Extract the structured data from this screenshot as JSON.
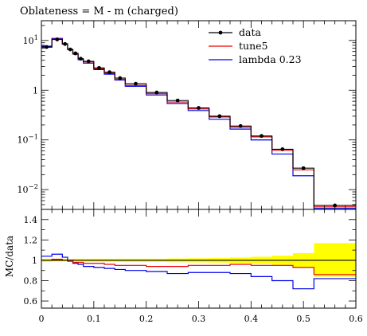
{
  "chart_data": [
    {
      "type": "line",
      "title": "Oblateness = M - m (charged)",
      "xlabel": "",
      "ylabel": "",
      "yscale": "log",
      "xlim": [
        0,
        0.6
      ],
      "ylim": [
        0.004,
        25
      ],
      "y_ticks": [
        {
          "value": 0.01,
          "base": "10",
          "exp": "−2"
        },
        {
          "value": 0.1,
          "base": "10",
          "exp": "−1"
        },
        {
          "value": 1,
          "base": "1",
          "exp": ""
        },
        {
          "value": 10,
          "base": "10",
          "exp": "1"
        }
      ],
      "legend": {
        "placement": "top-right"
      },
      "bin_edges": [
        0,
        0.02,
        0.04,
        0.05,
        0.06,
        0.07,
        0.08,
        0.1,
        0.12,
        0.14,
        0.16,
        0.2,
        0.24,
        0.28,
        0.32,
        0.36,
        0.4,
        0.44,
        0.48,
        0.52,
        0.6
      ],
      "series": [
        {
          "name": "data",
          "kind": "points",
          "color": "#000000",
          "x": [
            0.01,
            0.03,
            0.045,
            0.055,
            0.065,
            0.075,
            0.09,
            0.11,
            0.13,
            0.15,
            0.18,
            0.22,
            0.26,
            0.3,
            0.34,
            0.38,
            0.42,
            0.46,
            0.5,
            0.56
          ],
          "values": [
            7.4,
            10.5,
            8.5,
            6.6,
            5.5,
            4.3,
            3.8,
            2.8,
            2.3,
            1.75,
            1.35,
            0.9,
            0.62,
            0.44,
            0.3,
            0.19,
            0.12,
            0.065,
            0.027,
            0.0048
          ]
        },
        {
          "name": "tune5",
          "kind": "histogram",
          "color": "#ee0000",
          "values": [
            7.3,
            10.6,
            8.4,
            6.6,
            5.3,
            4.2,
            3.7,
            2.7,
            2.2,
            1.65,
            1.25,
            0.85,
            0.58,
            0.42,
            0.29,
            0.18,
            0.115,
            0.062,
            0.025,
            0.0045
          ]
        },
        {
          "name": "lambda 0.23",
          "kind": "histogram",
          "color": "#0000ee",
          "values": [
            7.7,
            11.0,
            8.6,
            6.6,
            5.3,
            4.1,
            3.5,
            2.6,
            2.1,
            1.6,
            1.2,
            0.8,
            0.54,
            0.39,
            0.26,
            0.165,
            0.1,
            0.052,
            0.019,
            0.0042
          ]
        }
      ]
    },
    {
      "type": "line",
      "title": "",
      "xlabel": "",
      "ylabel": "MC/data",
      "xlim": [
        0,
        0.6
      ],
      "ylim": [
        0.53,
        1.5
      ],
      "x_ticks": [
        "0",
        "0.1",
        "0.2",
        "0.3",
        "0.4",
        "0.5",
        "0.6"
      ],
      "y_ticks": [
        "0.6",
        "0.8",
        "1",
        "1.2",
        "1.4"
      ],
      "bin_edges": [
        0,
        0.02,
        0.04,
        0.05,
        0.06,
        0.07,
        0.08,
        0.1,
        0.12,
        0.14,
        0.16,
        0.2,
        0.24,
        0.28,
        0.32,
        0.36,
        0.4,
        0.44,
        0.48,
        0.52,
        0.6
      ],
      "band": {
        "color": "#ffff00",
        "lower": [
          0.985,
          0.988,
          0.988,
          0.988,
          0.986,
          0.986,
          0.986,
          0.985,
          0.985,
          0.985,
          0.985,
          0.985,
          0.982,
          0.98,
          0.978,
          0.972,
          0.965,
          0.955,
          0.93,
          0.84
        ],
        "upper": [
          1.015,
          1.012,
          1.012,
          1.012,
          1.014,
          1.014,
          1.014,
          1.015,
          1.015,
          1.015,
          1.015,
          1.015,
          1.018,
          1.02,
          1.022,
          1.028,
          1.035,
          1.045,
          1.07,
          1.17
        ]
      },
      "series": [
        {
          "name": "data",
          "color": "#000000",
          "values": [
            1,
            1,
            1,
            1,
            1,
            1,
            1,
            1,
            1,
            1,
            1,
            1,
            1,
            1,
            1,
            1,
            1,
            1,
            1,
            1
          ]
        },
        {
          "name": "tune5",
          "color": "#ee0000",
          "values": [
            1.0,
            1.01,
            1.0,
            0.99,
            0.98,
            0.98,
            0.97,
            0.97,
            0.96,
            0.95,
            0.95,
            0.94,
            0.94,
            0.95,
            0.95,
            0.96,
            0.95,
            0.95,
            0.93,
            0.86
          ]
        },
        {
          "name": "lambda 0.23",
          "color": "#0000ee",
          "values": [
            1.04,
            1.06,
            1.03,
            1.0,
            0.97,
            0.96,
            0.94,
            0.93,
            0.92,
            0.91,
            0.9,
            0.89,
            0.87,
            0.88,
            0.88,
            0.87,
            0.84,
            0.8,
            0.72,
            0.82
          ]
        }
      ]
    }
  ]
}
